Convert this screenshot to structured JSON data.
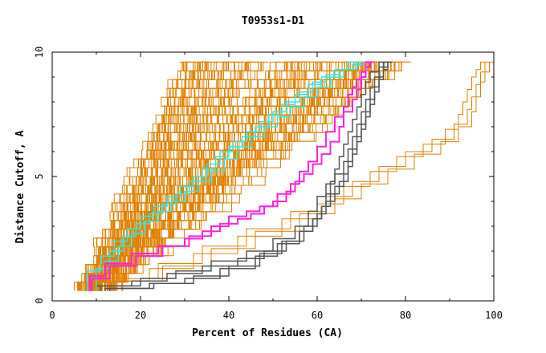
{
  "chart_data": {
    "type": "line",
    "title": "T0953s1-D1",
    "xlabel": "Percent of Residues (CA)",
    "ylabel": "Distance Cutoff, A",
    "xlim": [
      0,
      100
    ],
    "ylim": [
      0,
      10
    ],
    "xticks": [
      0,
      20,
      40,
      60,
      80,
      100
    ],
    "yticks": [
      0,
      5,
      10
    ],
    "grid": false,
    "colors": {
      "orange": "#e08000",
      "gray": "#555555",
      "cyan": "#33e8e0",
      "magenta": "#ff22dd"
    },
    "series": [
      {
        "name": "highlight-magenta",
        "color": "#ff22dd",
        "width": 2,
        "x": [
          8.5,
          12,
          18,
          24,
          30,
          34,
          38,
          42,
          45,
          48,
          51,
          54,
          56,
          58,
          60,
          62,
          64,
          66,
          67,
          68,
          69,
          70,
          71,
          72,
          73
        ],
        "y": [
          0.4,
          1.0,
          1.5,
          1.9,
          2.2,
          2.5,
          2.8,
          3.1,
          3.3,
          3.5,
          3.8,
          4.3,
          4.7,
          5.2,
          5.6,
          6.2,
          6.8,
          7.4,
          7.8,
          8.3,
          8.6,
          8.9,
          9.2,
          9.4,
          9.6
        ]
      },
      {
        "name": "highlight-magenta-2",
        "color": "#ff22dd",
        "width": 2,
        "x": [
          9,
          13,
          19,
          25,
          31,
          36,
          40,
          44,
          47,
          50,
          53,
          55,
          57,
          59,
          61,
          63,
          65,
          66,
          68,
          69,
          70,
          71,
          72
        ],
        "y": [
          0.4,
          0.9,
          1.4,
          1.8,
          2.2,
          2.6,
          3.0,
          3.4,
          3.6,
          3.8,
          4.0,
          4.4,
          4.8,
          5.1,
          5.5,
          5.9,
          6.4,
          7.0,
          7.6,
          8.1,
          8.5,
          9.0,
          9.6
        ]
      },
      {
        "name": "group-gray-1",
        "color": "#555555",
        "width": 1.5,
        "x": [
          10,
          18,
          26,
          34,
          42,
          48,
          53,
          56,
          59,
          61,
          62,
          63,
          64,
          65,
          66,
          67,
          68,
          69,
          70,
          71,
          72,
          74,
          76
        ],
        "y": [
          0.4,
          0.6,
          0.8,
          1.1,
          1.4,
          1.7,
          2.0,
          2.4,
          2.8,
          3.3,
          3.8,
          4.3,
          4.8,
          5.3,
          5.8,
          6.3,
          6.8,
          7.3,
          7.8,
          8.3,
          8.8,
          9.2,
          9.6
        ]
      },
      {
        "name": "group-gray-2",
        "color": "#555555",
        "width": 1.5,
        "x": [
          11,
          20,
          28,
          36,
          44,
          50,
          55,
          58,
          60,
          62,
          64,
          66,
          67,
          68,
          69,
          70,
          71,
          72,
          73,
          74,
          75,
          76
        ],
        "y": [
          0.4,
          0.6,
          0.9,
          1.2,
          1.6,
          2.0,
          2.5,
          3.0,
          3.6,
          4.2,
          4.7,
          5.1,
          5.6,
          6.1,
          6.6,
          7.1,
          7.6,
          8.1,
          8.6,
          9.0,
          9.4,
          9.6
        ]
      },
      {
        "name": "group-gray-3",
        "color": "#555555",
        "width": 1.5,
        "x": [
          12,
          22,
          30,
          38,
          46,
          51,
          56,
          59,
          61,
          63,
          65,
          67,
          68,
          69,
          70,
          71,
          72,
          73,
          74,
          75,
          76,
          77
        ],
        "y": [
          0.4,
          0.5,
          0.7,
          0.9,
          1.3,
          1.8,
          2.3,
          2.8,
          3.3,
          3.8,
          4.3,
          4.8,
          5.4,
          5.9,
          6.4,
          6.9,
          7.4,
          7.9,
          8.4,
          8.9,
          9.3,
          9.6
        ]
      },
      {
        "name": "group-gray-4",
        "color": "#555555",
        "width": 1.5,
        "x": [
          13,
          23,
          32,
          40,
          47,
          52,
          57,
          60,
          62,
          64,
          66,
          67,
          68,
          69,
          70,
          71,
          72,
          73,
          74,
          75,
          76,
          77
        ],
        "y": [
          0.4,
          0.5,
          0.7,
          1.0,
          1.4,
          1.9,
          2.4,
          3.0,
          3.5,
          4.0,
          4.6,
          5.1,
          5.6,
          6.1,
          6.6,
          7.1,
          7.6,
          8.1,
          8.6,
          9.0,
          9.4,
          9.6
        ]
      },
      {
        "name": "group-cyan-1",
        "color": "#33e8e0",
        "width": 1.5,
        "x": [
          8,
          11,
          14,
          17,
          20,
          23,
          26,
          29,
          32,
          35,
          38,
          41,
          44,
          47,
          50,
          53,
          56,
          59,
          62,
          65,
          68,
          71,
          72
        ],
        "y": [
          0.4,
          1.2,
          1.8,
          2.4,
          2.9,
          3.4,
          3.8,
          4.2,
          4.6,
          5.0,
          5.5,
          6.0,
          6.4,
          6.8,
          7.2,
          7.6,
          8.0,
          8.4,
          8.8,
          9.1,
          9.3,
          9.5,
          9.6
        ]
      },
      {
        "name": "group-cyan-2",
        "color": "#33e8e0",
        "width": 1.5,
        "x": [
          9,
          12,
          15,
          18,
          21,
          24,
          27,
          30,
          33,
          36,
          39,
          42,
          45,
          48,
          51,
          54,
          57,
          60,
          63,
          66,
          69,
          72
        ],
        "y": [
          0.4,
          1.0,
          1.6,
          2.2,
          2.7,
          3.2,
          3.6,
          4.0,
          4.4,
          4.8,
          5.2,
          5.7,
          6.2,
          6.6,
          7.0,
          7.4,
          7.8,
          8.2,
          8.6,
          9.0,
          9.3,
          9.6
        ]
      },
      {
        "name": "group-cyan-3",
        "color": "#33e8e0",
        "width": 1.5,
        "x": [
          10,
          13,
          16,
          19,
          22,
          25,
          28,
          31,
          34,
          37,
          40,
          43,
          46,
          49,
          52,
          55,
          58,
          61,
          64,
          67,
          70
        ],
        "y": [
          0.4,
          1.3,
          2.0,
          2.6,
          3.1,
          3.5,
          3.9,
          4.3,
          4.8,
          5.3,
          5.8,
          6.2,
          6.6,
          7.0,
          7.5,
          7.9,
          8.3,
          8.7,
          9.0,
          9.3,
          9.6
        ]
      },
      {
        "name": "outlier-orange-1",
        "color": "#e08000",
        "width": 1,
        "x": [
          12,
          22,
          32,
          42,
          52,
          60,
          66,
          72,
          78,
          84,
          89,
          92,
          93,
          94,
          95,
          96,
          97,
          98
        ],
        "y": [
          0.4,
          0.8,
          1.3,
          1.9,
          2.6,
          3.3,
          3.9,
          4.6,
          5.2,
          5.8,
          6.3,
          6.9,
          7.5,
          8.0,
          8.5,
          9.0,
          9.3,
          9.6
        ]
      },
      {
        "name": "outlier-orange-2",
        "color": "#e08000",
        "width": 1,
        "x": [
          13,
          24,
          34,
          44,
          54,
          62,
          68,
          74,
          80,
          86,
          91,
          94,
          95,
          96,
          97,
          98,
          99
        ],
        "y": [
          0.4,
          0.9,
          1.5,
          2.2,
          2.9,
          3.6,
          4.2,
          4.8,
          5.4,
          6.0,
          6.5,
          7.1,
          7.7,
          8.2,
          8.7,
          9.2,
          9.6
        ]
      },
      {
        "name": "outlier-orange-3",
        "color": "#e08000",
        "width": 1,
        "x": [
          14,
          25,
          36,
          46,
          56,
          64,
          70,
          76,
          82,
          88,
          92,
          95,
          96,
          97,
          98,
          99,
          100
        ],
        "y": [
          0.4,
          0.8,
          1.4,
          2.1,
          2.8,
          3.5,
          4.1,
          4.7,
          5.3,
          5.9,
          6.4,
          7.0,
          7.6,
          8.2,
          8.8,
          9.2,
          9.6
        ]
      }
    ]
  }
}
